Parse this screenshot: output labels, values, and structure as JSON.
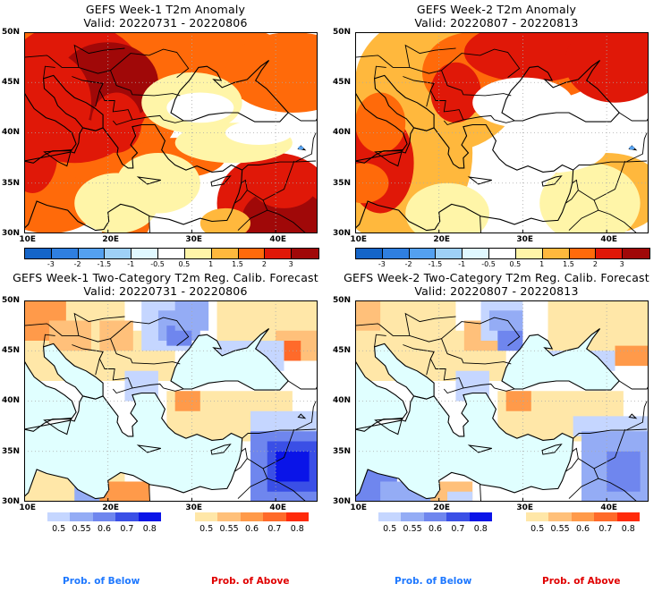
{
  "panels": [
    {
      "id": "week1-anomaly",
      "title": "GEFS Week-1 T2m Anomaly",
      "valid": "Valid: 20220731 - 20220806",
      "type": "anomaly"
    },
    {
      "id": "week2-anomaly",
      "title": "GEFS Week-2 T2m Anomaly",
      "valid": "Valid: 20220807 - 20220813",
      "type": "anomaly"
    },
    {
      "id": "week1-prob",
      "title": "GEFS Week-1 Two-Category T2m Reg. Calib. Forecast",
      "valid": "Valid: 20220731 - 20220806",
      "type": "probability"
    },
    {
      "id": "week2-prob",
      "title": "GEFS Week-2 Two-Category T2m Reg. Calib. Forecast",
      "valid": "Valid: 20220807 - 20220813",
      "type": "probability"
    }
  ],
  "axes": {
    "lat_labels": [
      "50N",
      "45N",
      "40N",
      "35N",
      "30N"
    ],
    "lon_labels": [
      "10E",
      "20E",
      "30E",
      "40E"
    ],
    "lat_range": [
      30,
      50
    ],
    "lon_range": [
      10,
      45
    ]
  },
  "anomaly_legend": {
    "labels": [
      "-3",
      "-2",
      "-1.5",
      "-1",
      "-0.5",
      "0.5",
      "1",
      "1.5",
      "2",
      "3"
    ],
    "colors": [
      "#1565c8",
      "#2f7fe0",
      "#54a0ef",
      "#9ed0f7",
      "#e0f8ff",
      "#ffffff",
      "#fff5a8",
      "#ffb83d",
      "#ff6a0a",
      "#e01808",
      "#a00808"
    ]
  },
  "prob_legend": {
    "below": {
      "labels": [
        "0.5",
        "0.55",
        "0.6",
        "0.7",
        "0.8"
      ],
      "colors": [
        "#c5d6ff",
        "#94acf5",
        "#6f86ee",
        "#3a4fe6",
        "#0a14e8"
      ]
    },
    "above": {
      "labels": [
        "0.5",
        "0.55",
        "0.6",
        "0.7",
        "0.8"
      ],
      "colors": [
        "#ffe7a8",
        "#ffc07a",
        "#ff9a4a",
        "#ff6a2a",
        "#ff2a0a"
      ]
    }
  },
  "footer": {
    "below_label": "Prob. of Below",
    "above_label": "Prob. of Above",
    "below_color": "#1e78ff",
    "above_color": "#e00000"
  },
  "colors": {
    "sea_prob": "#e0ffff"
  }
}
